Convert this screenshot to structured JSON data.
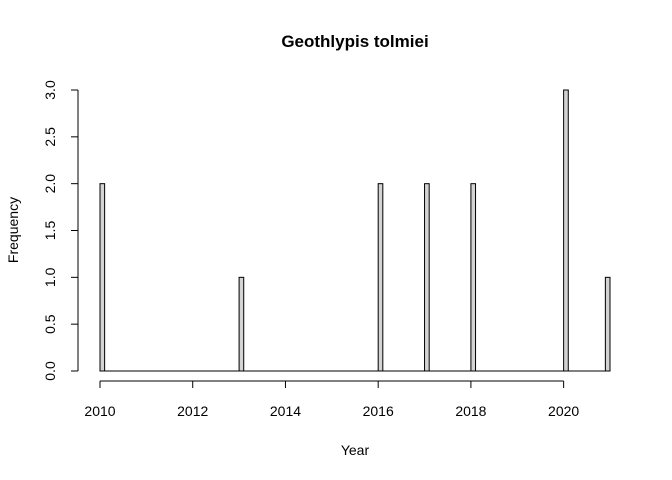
{
  "chart_data": {
    "type": "bar",
    "title": "Geothlypis tolmiei",
    "xlabel": "Year",
    "ylabel": "Frequency",
    "xlim": [
      2010,
      2021
    ],
    "ylim": [
      0,
      3
    ],
    "x_ticks": [
      2010,
      2012,
      2014,
      2016,
      2018,
      2020
    ],
    "x_tick_labels": [
      "2010",
      "2012",
      "2014",
      "2016",
      "2018",
      "2020"
    ],
    "y_ticks": [
      0,
      0.5,
      1,
      1.5,
      2,
      2.5,
      3
    ],
    "y_tick_labels": [
      "0.0",
      "0.5",
      "1.0",
      "1.5",
      "2.0",
      "2.5",
      "3.0"
    ],
    "bin_width": 0.1,
    "x": [
      2010,
      2013,
      2016,
      2017,
      2018,
      2020,
      2021
    ],
    "values": [
      2,
      1,
      2,
      2,
      2,
      3,
      1
    ],
    "bar_fill": "#d3d3d3",
    "bar_stroke": "#000000",
    "grid": false
  }
}
